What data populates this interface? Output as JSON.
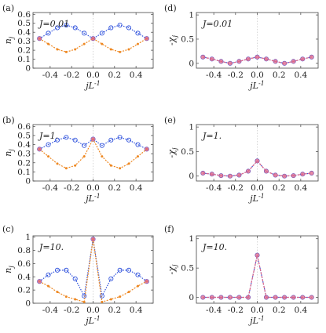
{
  "chart_data": [
    {
      "type": "line",
      "tag": "(a)",
      "jlabel": "J=0.01",
      "ylabel": "n",
      "ylabel_sub": "j",
      "xlabel": "jL",
      "xlabel_sup": "-1",
      "xlim": [
        -0.56,
        0.56
      ],
      "ylim": [
        0,
        0.62
      ],
      "xticks": [
        "-0.4",
        "-0.2",
        "0.0",
        "0.2",
        "0.4"
      ],
      "xtick_values": [
        -0.4,
        -0.2,
        0.0,
        0.2,
        0.4
      ],
      "yticks": [
        "0",
        "0.1",
        "0.2",
        "0.3",
        "0.4",
        "0.5",
        "0.6"
      ],
      "ytick_values": [
        0,
        0.1,
        0.2,
        0.3,
        0.4,
        0.5,
        0.6
      ],
      "x": [
        -0.5,
        -0.417,
        -0.333,
        -0.25,
        -0.167,
        -0.083,
        0.0,
        0.083,
        0.167,
        0.25,
        0.333,
        0.417,
        0.5
      ],
      "series": [
        {
          "color": "#3355dd",
          "marker": "circle-open",
          "values": [
            0.33,
            0.39,
            0.45,
            0.48,
            0.45,
            0.39,
            0.33,
            0.39,
            0.45,
            0.48,
            0.45,
            0.39,
            0.33
          ]
        },
        {
          "color": "#ee8822",
          "marker": "dot",
          "values": [
            0.33,
            0.27,
            0.21,
            0.18,
            0.21,
            0.27,
            0.33,
            0.27,
            0.21,
            0.18,
            0.21,
            0.27,
            0.33
          ]
        },
        {
          "color": "#dd6688",
          "marker": "circle-filled",
          "values": [
            0.33,
            null,
            null,
            null,
            null,
            null,
            0.33,
            null,
            null,
            null,
            null,
            null,
            0.33
          ]
        }
      ]
    },
    {
      "type": "line",
      "tag": "(d)",
      "jlabel": "J=0.01",
      "ylabel": "-χ",
      "ylabel_sub": "j",
      "xlabel": "jL",
      "xlabel_sup": "-1",
      "xlim": [
        -0.56,
        0.56
      ],
      "ylim": [
        -0.1,
        1.05
      ],
      "xticks": [
        "-0.4",
        "-0.2",
        "0.0",
        "0.2",
        "0.4"
      ],
      "xtick_values": [
        -0.4,
        -0.2,
        0.0,
        0.2,
        0.4
      ],
      "yticks": [
        "0",
        "0.5",
        "1"
      ],
      "ytick_values": [
        0,
        0.5,
        1.0
      ],
      "x": [
        -0.5,
        -0.417,
        -0.333,
        -0.25,
        -0.167,
        -0.083,
        0.0,
        0.083,
        0.167,
        0.25,
        0.333,
        0.417,
        0.5
      ],
      "series": [
        {
          "color": "#3355dd",
          "marker": "circle-open",
          "values": [
            0.13,
            0.09,
            0.04,
            0.0,
            0.04,
            0.09,
            0.13,
            0.09,
            0.04,
            0.0,
            0.04,
            0.09,
            0.13
          ]
        },
        {
          "color": "#dd6688",
          "marker": "circle-filled",
          "values": [
            0.13,
            0.09,
            0.04,
            0.0,
            0.04,
            0.09,
            0.13,
            0.09,
            0.04,
            0.0,
            0.04,
            0.09,
            0.13
          ]
        }
      ]
    },
    {
      "type": "line",
      "tag": "(b)",
      "jlabel": "J=1.",
      "ylabel": "n",
      "ylabel_sub": "j",
      "xlabel": "jL",
      "xlabel_sup": "-1",
      "xlim": [
        -0.56,
        0.56
      ],
      "ylim": [
        0,
        0.62
      ],
      "xticks": [
        "-0.4",
        "-0.2",
        "0.0",
        "0.2",
        "0.4"
      ],
      "xtick_values": [
        -0.4,
        -0.2,
        0.0,
        0.2,
        0.4
      ],
      "yticks": [
        "0",
        "0.1",
        "0.2",
        "0.3",
        "0.4",
        "0.5",
        "0.6"
      ],
      "ytick_values": [
        0,
        0.1,
        0.2,
        0.3,
        0.4,
        0.5,
        0.6
      ],
      "x": [
        -0.5,
        -0.417,
        -0.333,
        -0.25,
        -0.167,
        -0.083,
        0.0,
        0.083,
        0.167,
        0.25,
        0.333,
        0.417,
        0.5
      ],
      "series": [
        {
          "color": "#3355dd",
          "marker": "circle-open",
          "values": [
            0.35,
            0.4,
            0.45,
            0.48,
            0.45,
            0.39,
            0.46,
            0.39,
            0.45,
            0.48,
            0.45,
            0.4,
            0.35
          ]
        },
        {
          "color": "#ee8822",
          "marker": "dot",
          "values": [
            0.35,
            0.27,
            0.19,
            0.14,
            0.17,
            0.27,
            0.46,
            0.27,
            0.17,
            0.14,
            0.19,
            0.27,
            0.35
          ]
        },
        {
          "color": "#dd6688",
          "marker": "circle-filled",
          "values": [
            0.35,
            null,
            null,
            null,
            null,
            null,
            0.46,
            null,
            null,
            null,
            null,
            null,
            0.35
          ]
        }
      ]
    },
    {
      "type": "line",
      "tag": "(e)",
      "jlabel": "J=1.",
      "ylabel": "-χ",
      "ylabel_sub": "j",
      "xlabel": "jL",
      "xlabel_sup": "-1",
      "xlim": [
        -0.56,
        0.56
      ],
      "ylim": [
        -0.1,
        1.05
      ],
      "xticks": [
        "-0.4",
        "-0.2",
        "0.0",
        "0.2",
        "0.4"
      ],
      "xtick_values": [
        -0.4,
        -0.2,
        0.0,
        0.2,
        0.4
      ],
      "yticks": [
        "0",
        "0.5",
        "1"
      ],
      "ytick_values": [
        0,
        0.5,
        1.0
      ],
      "x": [
        -0.5,
        -0.417,
        -0.333,
        -0.25,
        -0.167,
        -0.083,
        0.0,
        0.083,
        0.167,
        0.25,
        0.333,
        0.417,
        0.5
      ],
      "series": [
        {
          "color": "#3355dd",
          "marker": "circle-open",
          "values": [
            0.06,
            0.04,
            0.01,
            0.0,
            0.02,
            0.1,
            0.31,
            0.1,
            0.02,
            0.0,
            0.01,
            0.04,
            0.06
          ]
        },
        {
          "color": "#dd6688",
          "marker": "circle-filled",
          "values": [
            0.06,
            0.04,
            0.01,
            0.0,
            0.02,
            0.1,
            0.31,
            0.1,
            0.02,
            0.0,
            0.01,
            0.04,
            0.06
          ]
        }
      ]
    },
    {
      "type": "line",
      "tag": "(c)",
      "jlabel": "J=10.",
      "ylabel": "n",
      "ylabel_sub": "j",
      "xlabel": "jL",
      "xlabel_sup": "-1",
      "xlim": [
        -0.56,
        0.56
      ],
      "ylim": [
        0,
        1.02
      ],
      "xticks": [
        "-0.4",
        "-0.2",
        "0.0",
        "0.2",
        "0.4"
      ],
      "xtick_values": [
        -0.4,
        -0.2,
        0.0,
        0.2,
        0.4
      ],
      "yticks": [
        "0",
        "0.2",
        "0.4",
        "0.6",
        "0.8",
        "1"
      ],
      "ytick_values": [
        0,
        0.2,
        0.4,
        0.6,
        0.8,
        1.0
      ],
      "x": [
        -0.5,
        -0.417,
        -0.333,
        -0.25,
        -0.167,
        -0.083,
        0.0,
        0.083,
        0.167,
        0.25,
        0.333,
        0.417,
        0.5
      ],
      "series": [
        {
          "color": "#3355dd",
          "marker": "circle-open",
          "values": [
            0.33,
            0.43,
            0.5,
            0.5,
            0.37,
            0.11,
            0.97,
            0.11,
            0.37,
            0.5,
            0.5,
            0.43,
            0.33
          ]
        },
        {
          "color": "#ee8822",
          "marker": "dot",
          "values": [
            0.33,
            0.26,
            0.17,
            0.1,
            0.06,
            0.02,
            0.97,
            0.02,
            0.06,
            0.1,
            0.17,
            0.26,
            0.33
          ]
        },
        {
          "color": "#dd6688",
          "marker": "circle-filled",
          "values": [
            0.33,
            null,
            null,
            null,
            null,
            null,
            0.97,
            null,
            null,
            null,
            null,
            null,
            0.33
          ]
        }
      ]
    },
    {
      "type": "line",
      "tag": "(f)",
      "jlabel": "J=10.",
      "ylabel": "-χ",
      "ylabel_sub": "j",
      "xlabel": "jL",
      "xlabel_sup": "-1",
      "xlim": [
        -0.56,
        0.56
      ],
      "ylim": [
        -0.1,
        1.05
      ],
      "xticks": [
        "-0.4",
        "-0.2",
        "0.0",
        "0.2",
        "0.4"
      ],
      "xtick_values": [
        -0.4,
        -0.2,
        0.0,
        0.2,
        0.4
      ],
      "yticks": [
        "0",
        "0.5",
        "1"
      ],
      "ytick_values": [
        0,
        0.5,
        1.0
      ],
      "x": [
        -0.5,
        -0.417,
        -0.333,
        -0.25,
        -0.167,
        -0.083,
        0.0,
        0.083,
        0.167,
        0.25,
        0.333,
        0.417,
        0.5
      ],
      "series": [
        {
          "color": "#3355dd",
          "marker": "circle-open",
          "values": [
            0.0,
            0.0,
            0.0,
            0.0,
            0.0,
            0.0,
            0.72,
            0.0,
            0.0,
            0.0,
            0.0,
            0.0,
            0.0
          ]
        },
        {
          "color": "#dd6688",
          "marker": "circle-filled",
          "values": [
            0.0,
            0.0,
            0.0,
            0.0,
            0.0,
            0.0,
            0.72,
            0.0,
            0.0,
            0.0,
            0.0,
            0.0,
            0.0
          ]
        }
      ]
    }
  ]
}
